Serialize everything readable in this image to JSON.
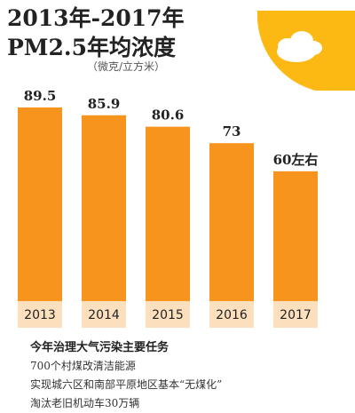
{
  "title_line1": "2013年-2017年",
  "title_line2": "PM2.5年均浓度",
  "unit": "（微克/立方米）",
  "colors": {
    "bar": "#f7941d",
    "year_band": "#fce0bd",
    "sun": "#fdb913",
    "cloud": "#ffffff"
  },
  "chart_data": {
    "type": "bar",
    "title": "2013年-2017年 PM2.5年均浓度",
    "ylabel": "（微克/立方米）",
    "categories": [
      "2013",
      "2014",
      "2015",
      "2016",
      "2017"
    ],
    "values": [
      89.5,
      85.9,
      80.6,
      73,
      60
    ],
    "value_labels": [
      "89.5",
      "85.9",
      "80.6",
      "73",
      "60左右"
    ],
    "grid": false
  },
  "notes": {
    "heading": "今年治理大气污染主要任务",
    "items": [
      "700个村煤改清洁能源",
      "实现城六区和南部平原地区基本“无煤化”",
      "淘汰老旧机动车30万辆"
    ]
  }
}
